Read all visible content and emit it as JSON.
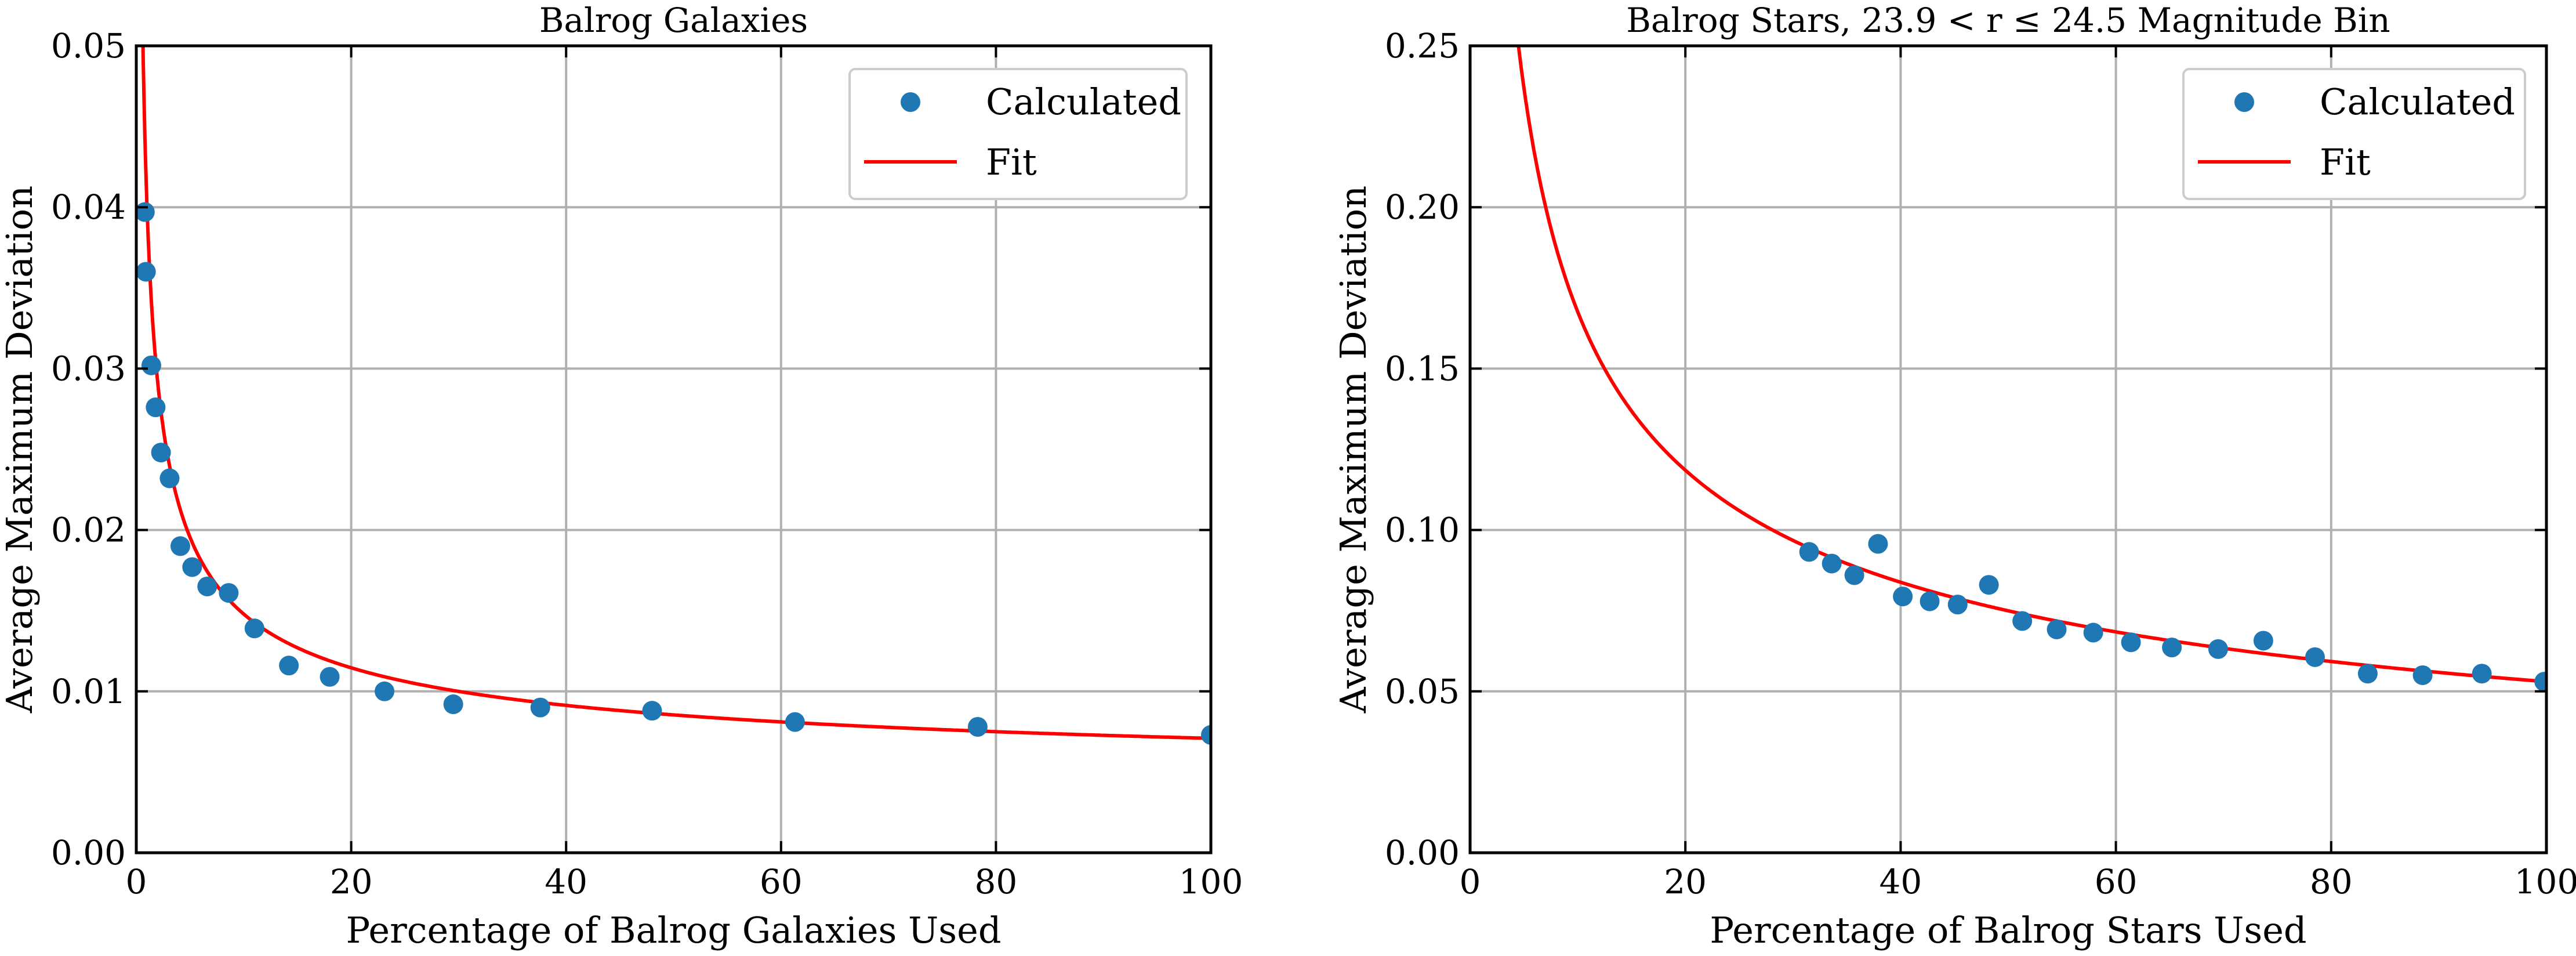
{
  "colors": {
    "points": "#1f77b4",
    "fit": "#ff0000",
    "grid": "#b0b0b0"
  },
  "chart_data": [
    {
      "type": "scatter",
      "title": "Balrog Galaxies",
      "xlabel": "Percentage of Balrog Galaxies Used",
      "ylabel": "Average Maximum Deviation",
      "xlim": [
        0,
        100
      ],
      "ylim": [
        0,
        0.05
      ],
      "xticks": [
        "0",
        "20",
        "40",
        "60",
        "80",
        "100"
      ],
      "yticks": [
        "0.00",
        "0.01",
        "0.02",
        "0.03",
        "0.04",
        "0.05"
      ],
      "xtick_values": [
        0,
        20,
        40,
        60,
        80,
        100
      ],
      "ytick_values": [
        0,
        0.01,
        0.02,
        0.03,
        0.04,
        0.05
      ],
      "grid": true,
      "legend": {
        "placement": "top-right",
        "entries": [
          "Calculated",
          "Fit"
        ]
      },
      "series": [
        {
          "name": "Calculated",
          "kind": "scatter",
          "x": [
            0.8,
            0.9,
            1.4,
            1.8,
            2.3,
            3.1,
            4.1,
            5.2,
            6.6,
            8.6,
            11,
            14.2,
            18,
            23.1,
            29.5,
            37.6,
            48,
            61.3,
            78.3,
            100
          ],
          "y": [
            0.0397,
            0.036,
            0.0302,
            0.0276,
            0.0248,
            0.0232,
            0.019,
            0.0177,
            0.0165,
            0.0161,
            0.0139,
            0.0116,
            0.0109,
            0.01,
            0.0092,
            0.009,
            0.0088,
            0.0081,
            0.0078,
            0.0073
          ]
        },
        {
          "name": "Fit",
          "kind": "line",
          "model": "c + a*x^-b",
          "params": {
            "a": 0.0363,
            "b": 0.515,
            "c": 0.0037
          }
        }
      ]
    },
    {
      "type": "scatter",
      "title": "Balrog Stars, 23.9 < r ≤ 24.5 Magnitude Bin",
      "xlabel": "Percentage of Balrog Stars Used",
      "ylabel": "Average Maximum Deviation",
      "xlim": [
        0,
        100
      ],
      "ylim": [
        0,
        0.25
      ],
      "xticks": [
        "0",
        "20",
        "40",
        "60",
        "80",
        "100"
      ],
      "yticks": [
        "0.00",
        "0.05",
        "0.10",
        "0.15",
        "0.20",
        "0.25"
      ],
      "xtick_values": [
        0,
        20,
        40,
        60,
        80,
        100
      ],
      "ytick_values": [
        0,
        0.05,
        0.1,
        0.15,
        0.2,
        0.25
      ],
      "grid": true,
      "legend": {
        "placement": "top-right",
        "entries": [
          "Calculated",
          "Fit"
        ]
      },
      "series": [
        {
          "name": "Calculated",
          "kind": "scatter",
          "x": [
            31.5,
            33.6,
            35.7,
            37.9,
            40.2,
            42.7,
            45.3,
            48.2,
            51.3,
            54.5,
            57.9,
            61.4,
            65.2,
            69.5,
            73.7,
            78.5,
            83.4,
            88.5,
            94,
            99.8
          ],
          "y": [
            0.0932,
            0.0896,
            0.086,
            0.0957,
            0.0794,
            0.0779,
            0.0769,
            0.083,
            0.0718,
            0.0692,
            0.0682,
            0.0652,
            0.0636,
            0.0631,
            0.0657,
            0.0606,
            0.0555,
            0.055,
            0.0555,
            0.053
          ]
        },
        {
          "name": "Fit",
          "kind": "line",
          "model": "c + a*x^-b",
          "params": {
            "a": 0.53,
            "b": 0.5,
            "c": 0
          }
        }
      ]
    }
  ]
}
